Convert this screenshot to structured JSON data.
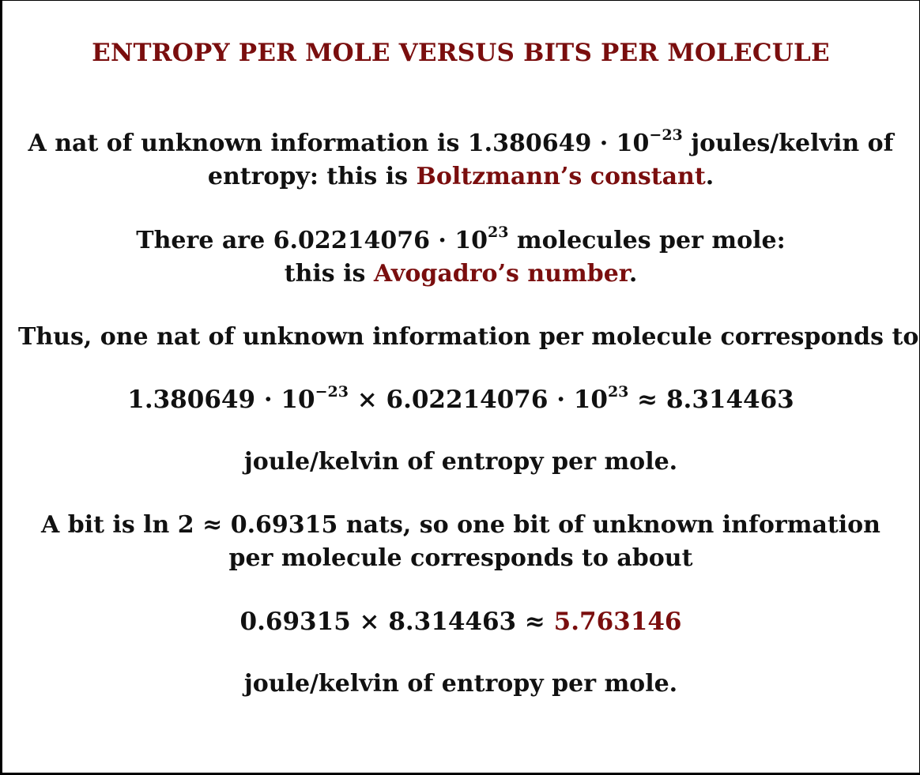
{
  "title": "ENTROPY PER MOLE VERSUS BITS PER MOLECULE",
  "para1": {
    "line1_a": "A nat of unknown information is 1.380649 · 10",
    "line1_exp": "−23",
    "line1_b": " joules/kelvin of",
    "line2_a": "entropy: this is ",
    "line2_link": "Boltzmann’s constant",
    "line2_b": "."
  },
  "para2": {
    "line1_a": "There are 6.02214076 · 10",
    "line1_exp": "23",
    "line1_b": " molecules per mole:",
    "line2_a": "this is ",
    "line2_link": "Avogadro’s number",
    "line2_b": "."
  },
  "para3": {
    "text": "Thus, one nat of unknown information per molecule corresponds to"
  },
  "equation1": {
    "part1": "1.380649 · 10",
    "exp1": "−23",
    "part2": " × 6.02214076 · 10",
    "exp2": "23",
    "part3": " ≈ 8.314463"
  },
  "para4": {
    "text": "joule/kelvin of entropy per mole."
  },
  "para5": {
    "line1": "A bit is ln 2 ≈ 0.69315 nats, so one bit of unknown information",
    "line2": "per molecule corresponds to about"
  },
  "equation2": {
    "part1": "0.69315 × 8.314463 ≈ ",
    "result": "5.763146"
  },
  "para6": {
    "text": "joule/kelvin of entropy per mole."
  },
  "colors": {
    "accent": "#7a0e0e",
    "text": "#111111",
    "background": "#ffffff"
  }
}
